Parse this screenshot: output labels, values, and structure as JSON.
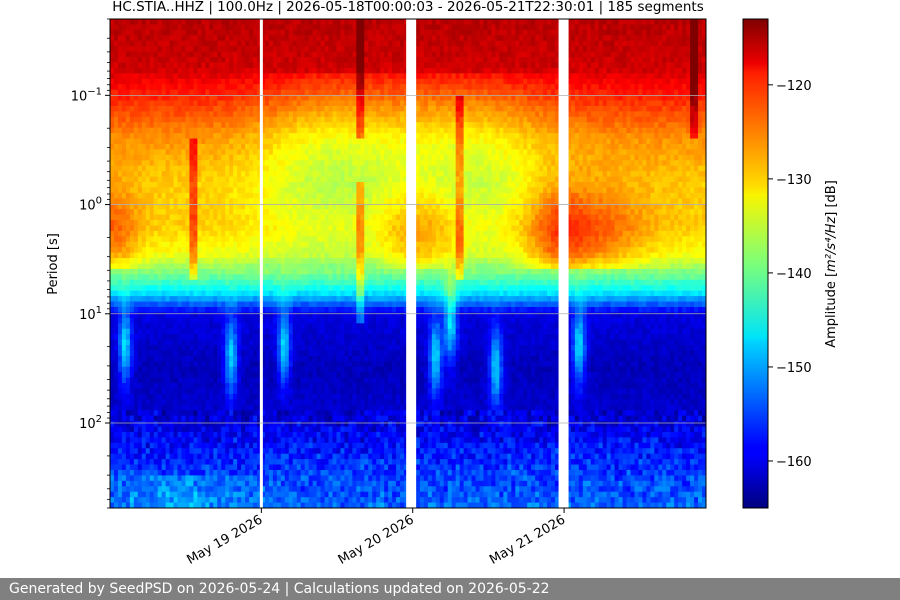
{
  "chart_data": {
    "type": "heatmap",
    "title": "HC.STIA..HHZ | 100.0Hz | 2026-05-18T00:00:03 - 2026-05-21T22:30:01 | 185 segments",
    "xlabel": "",
    "ylabel": "Period [s]",
    "x_range": [
      "2026-05-18T00:00:03",
      "2026-05-21T22:30:01"
    ],
    "x_ticks": [
      {
        "date": "2026-05-19",
        "label": "May 19 2026"
      },
      {
        "date": "2026-05-20",
        "label": "May 20 2026"
      },
      {
        "date": "2026-05-21",
        "label": "May 21 2026"
      }
    ],
    "y_scale": "log",
    "y_inverted": true,
    "y_range": [
      0.02,
      600
    ],
    "y_ticks": [
      {
        "value": 0.1,
        "base": "10",
        "exp": "−1"
      },
      {
        "value": 1,
        "base": "10",
        "exp": "0"
      },
      {
        "value": 10,
        "base": "10",
        "exp": "1"
      },
      {
        "value": 100,
        "base": "10",
        "exp": "2"
      }
    ],
    "grid": true,
    "colormap": "jet",
    "colorbar": {
      "label_prefix": "Amplitude [",
      "label_units": "m²/s⁴/Hz",
      "label_suffix": "] [dB]",
      "range": [
        -165,
        -113
      ],
      "ticks": [
        {
          "value": -120,
          "label": "−120"
        },
        {
          "value": -130,
          "label": "−130"
        },
        {
          "value": -140,
          "label": "−140"
        },
        {
          "value": -150,
          "label": "−150"
        },
        {
          "value": -160,
          "label": "−160"
        }
      ]
    },
    "data_gaps": [
      "2026-05-19T00:00:00",
      "2026-05-19T23:45:00",
      "2026-05-20T00:00:00",
      "2026-05-20T23:55:00"
    ],
    "segments": 185
  },
  "footer": {
    "text": "Generated by SeedPSD on 2026-05-24 | Calculations updated on 2026-05-22"
  }
}
